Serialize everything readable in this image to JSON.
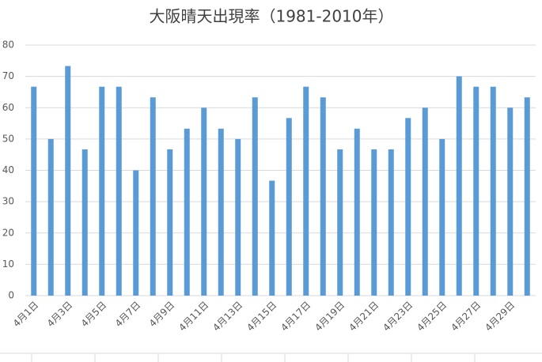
{
  "chart_data": {
    "type": "bar",
    "title": "大阪晴天出現率（1981-2010年）",
    "categories": [
      "4月1日",
      null,
      "4月3日",
      null,
      "4月5日",
      null,
      "4月7日",
      null,
      "4月9日",
      null,
      "4月11日",
      null,
      "4月13日",
      null,
      "4月15日",
      null,
      "4月17日",
      null,
      "4月19日",
      null,
      "4月21日",
      null,
      "4月23日",
      null,
      "4月25日",
      null,
      "4月27日",
      null,
      "4月29日",
      null
    ],
    "values": [
      66.7,
      50,
      73.3,
      46.7,
      66.7,
      66.7,
      40,
      63.3,
      46.7,
      53.3,
      60,
      53.3,
      50,
      63.3,
      36.7,
      56.7,
      66.7,
      63.3,
      46.7,
      53.3,
      46.7,
      46.7,
      56.7,
      60,
      50,
      70,
      66.7,
      66.7,
      60,
      63.3
    ],
    "color": "#5b9bd5",
    "ylim": [
      0,
      80
    ],
    "yticks": [
      0,
      10,
      20,
      30,
      40,
      50,
      60,
      70,
      80
    ],
    "grid": true
  }
}
